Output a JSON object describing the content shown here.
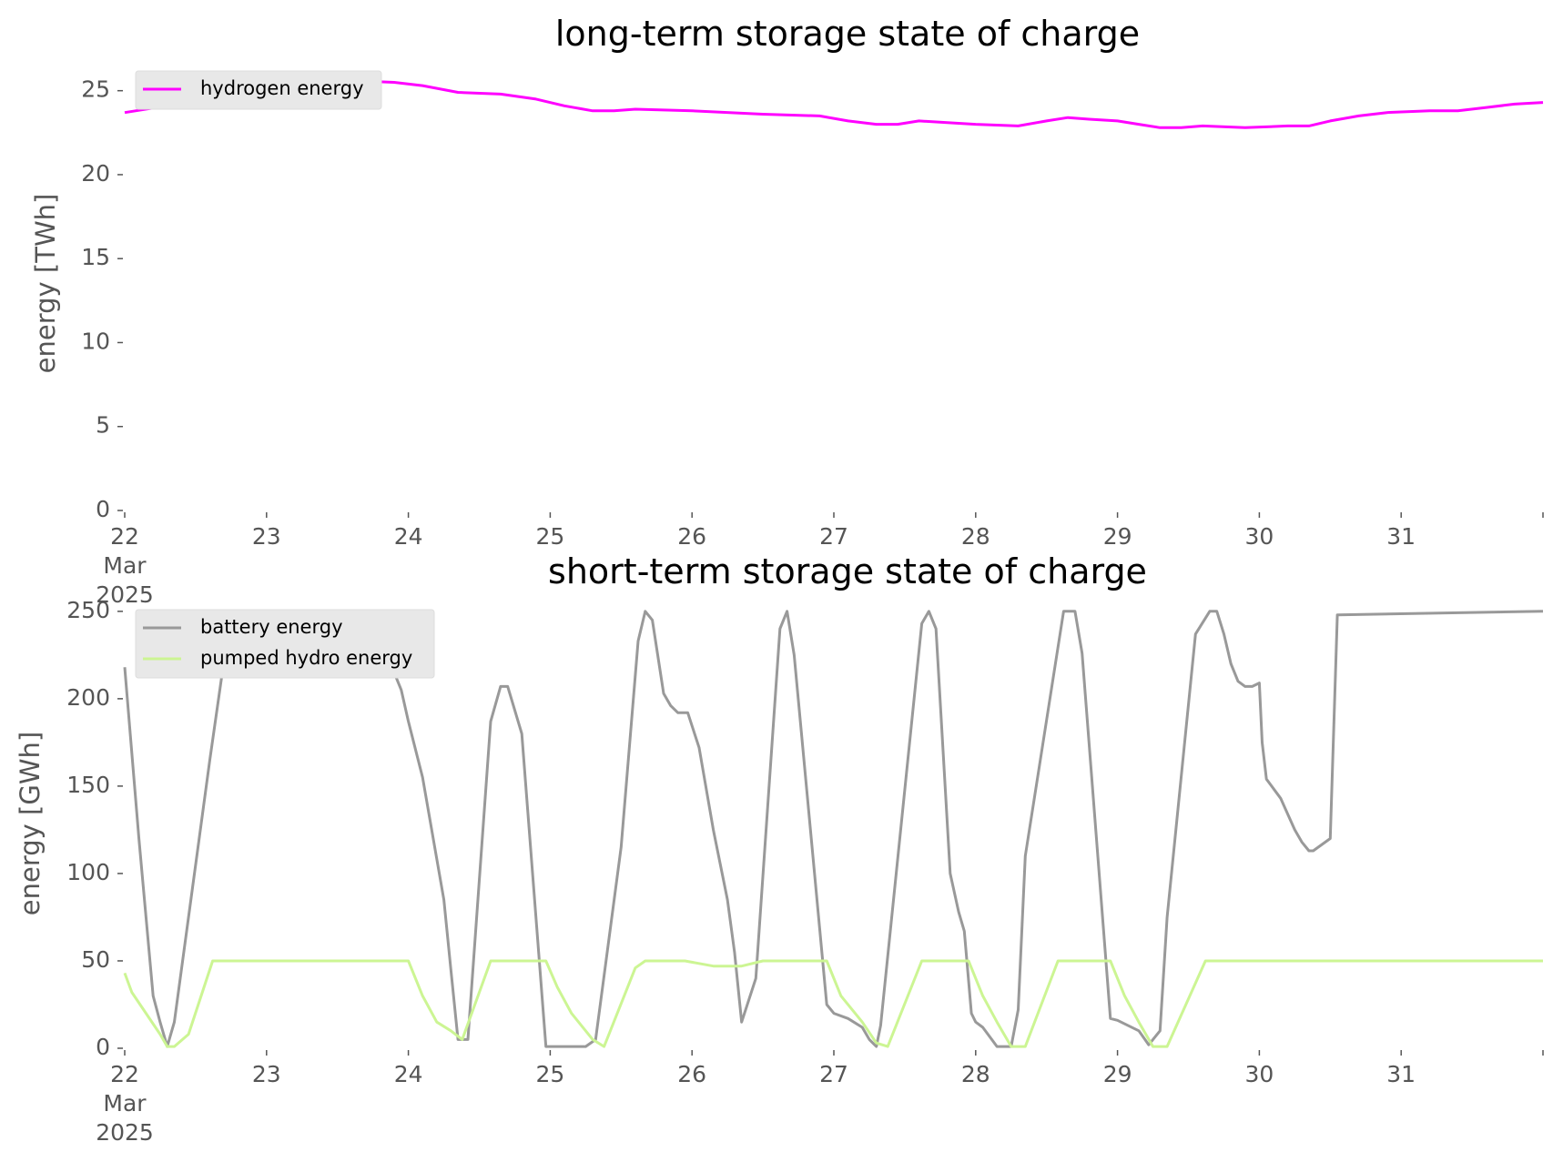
{
  "chart_data": [
    {
      "type": "line",
      "title": "long-term storage state of charge",
      "xlabel": "",
      "ylabel": "energy [TWh]",
      "x_ticks": [
        "22\nMar\n2025",
        "23",
        "24",
        "25",
        "26",
        "27",
        "28",
        "29",
        "30",
        "31"
      ],
      "xlim": [
        "2025-03-22",
        "2025-04-01"
      ],
      "ylim": [
        0,
        26.5
      ],
      "y_ticks": [
        0,
        5,
        10,
        15,
        20,
        25
      ],
      "grid": false,
      "legend": "top-left",
      "series": [
        {
          "name": "hydrogen energy",
          "color": "#ff00ff",
          "x": [
            22.0,
            22.3,
            22.6,
            22.9,
            23.3,
            23.6,
            23.9,
            24.1,
            24.35,
            24.65,
            24.9,
            25.1,
            25.3,
            25.45,
            25.6,
            26.0,
            26.5,
            26.9,
            27.1,
            27.3,
            27.45,
            27.6,
            27.8,
            28.0,
            28.3,
            28.5,
            28.65,
            28.8,
            29.0,
            29.15,
            29.3,
            29.45,
            29.6,
            29.9,
            30.2,
            30.35,
            30.5,
            30.7,
            30.9,
            31.2,
            31.4,
            31.6,
            31.8,
            32.0
          ],
          "y": [
            23.7,
            24.1,
            24.6,
            24.9,
            25.2,
            25.6,
            25.5,
            25.3,
            24.9,
            24.8,
            24.5,
            24.1,
            23.8,
            23.8,
            23.9,
            23.8,
            23.6,
            23.5,
            23.2,
            23.0,
            23.0,
            23.2,
            23.1,
            23.0,
            22.9,
            23.2,
            23.4,
            23.3,
            23.2,
            23.0,
            22.8,
            22.8,
            22.9,
            22.8,
            22.9,
            22.9,
            23.2,
            23.5,
            23.7,
            23.8,
            23.8,
            24.0,
            24.2,
            24.3
          ]
        }
      ]
    },
    {
      "type": "line",
      "title": "short-term storage state of charge",
      "xlabel": "",
      "ylabel": "energy [GWh]",
      "x_ticks": [
        "22\nMar\n2025",
        "23",
        "24",
        "25",
        "26",
        "27",
        "28",
        "29",
        "30",
        "31"
      ],
      "xlim": [
        "2025-03-22",
        "2025-04-01"
      ],
      "ylim": [
        0,
        252
      ],
      "y_ticks": [
        0,
        50,
        100,
        150,
        200,
        250
      ],
      "grid": false,
      "legend": "top-left",
      "series": [
        {
          "name": "battery energy",
          "color": "#999999",
          "x": [
            22.0,
            22.1,
            22.2,
            22.25,
            22.3,
            22.35,
            22.45,
            22.6,
            22.75,
            23.0,
            23.7,
            23.85,
            23.95,
            24.0,
            24.1,
            24.25,
            24.3,
            24.35,
            24.42,
            24.58,
            24.65,
            24.7,
            24.8,
            24.97,
            25.25,
            25.32,
            25.5,
            25.62,
            25.67,
            25.72,
            25.8,
            25.85,
            25.9,
            25.95,
            25.97,
            26.05,
            26.15,
            26.25,
            26.3,
            26.35,
            26.45,
            26.62,
            26.67,
            26.72,
            26.95,
            27.0,
            27.1,
            27.2,
            27.25,
            27.3,
            27.33,
            27.62,
            27.67,
            27.72,
            27.82,
            27.88,
            27.92,
            27.97,
            28.0,
            28.05,
            28.15,
            28.25,
            28.3,
            28.35,
            28.62,
            28.7,
            28.75,
            28.95,
            29.0,
            29.15,
            29.22,
            29.3,
            29.35,
            29.55,
            29.65,
            29.7,
            29.75,
            29.8,
            29.85,
            29.9,
            29.95,
            30.0,
            30.02,
            30.05,
            30.15,
            30.25,
            30.3,
            30.35,
            30.38,
            30.5,
            30.55,
            32.0
          ],
          "y": [
            218,
            120,
            30,
            15,
            1,
            15,
            75,
            165,
            250,
            250,
            250,
            225,
            205,
            187,
            155,
            85,
            45,
            5,
            5,
            187,
            207,
            207,
            180,
            1,
            1,
            5,
            115,
            233,
            250,
            245,
            203,
            196,
            192,
            192,
            192,
            172,
            125,
            85,
            55,
            15,
            40,
            240,
            250,
            225,
            25,
            20,
            17,
            12,
            5,
            1,
            13,
            243,
            250,
            240,
            100,
            78,
            67,
            20,
            15,
            12,
            1,
            1,
            22,
            110,
            250,
            250,
            226,
            17,
            16,
            10,
            2,
            10,
            75,
            237,
            250,
            250,
            237,
            220,
            210,
            207,
            207,
            209,
            175,
            154,
            143,
            125,
            118,
            113,
            113,
            120,
            248,
            250
          ]
        },
        {
          "name": "pumped hydro energy",
          "color": "#ccf593",
          "x": [
            22.0,
            22.05,
            22.15,
            22.25,
            22.3,
            22.35,
            22.45,
            22.62,
            24.0,
            24.1,
            24.2,
            24.3,
            24.38,
            24.58,
            24.97,
            25.05,
            25.15,
            25.3,
            25.38,
            25.6,
            25.67,
            25.8,
            25.95,
            26.15,
            26.35,
            26.5,
            26.95,
            27.05,
            27.2,
            27.3,
            27.38,
            27.62,
            27.95,
            28.05,
            28.15,
            28.25,
            28.35,
            28.58,
            28.95,
            29.05,
            29.15,
            29.25,
            29.35,
            29.62,
            32.0
          ],
          "y": [
            43,
            32,
            20,
            8,
            1,
            1,
            8,
            50,
            50,
            30,
            15,
            10,
            5,
            50,
            50,
            35,
            20,
            5,
            1,
            46,
            50,
            50,
            50,
            47,
            47,
            50,
            50,
            30,
            15,
            3,
            1,
            50,
            50,
            30,
            15,
            1,
            1,
            50,
            50,
            30,
            15,
            1,
            1,
            50,
            50
          ]
        }
      ]
    }
  ]
}
